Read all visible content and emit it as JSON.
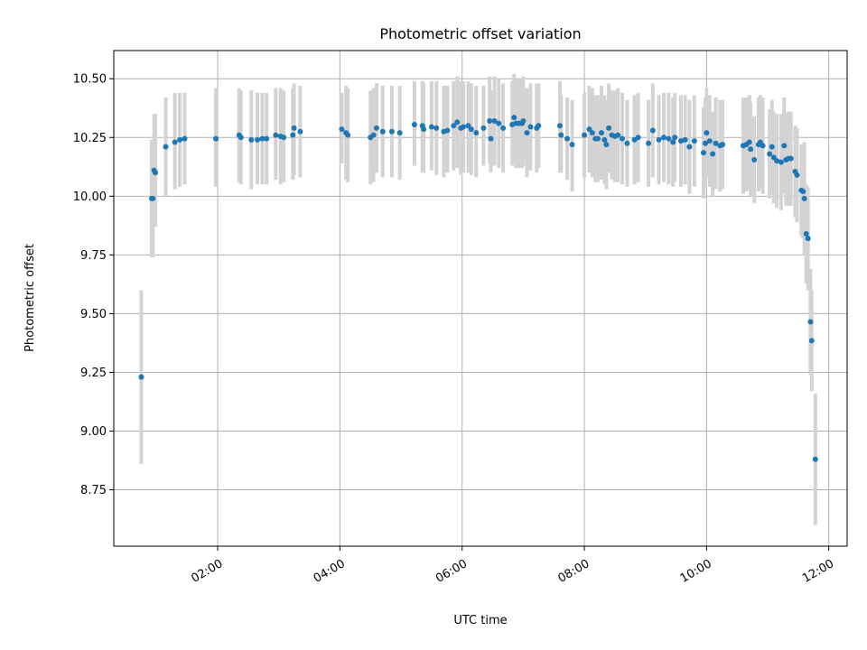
{
  "chart_data": {
    "type": "scatter",
    "title": "Photometric offset variation",
    "xlabel": "UTC time",
    "ylabel": "Photometric offset",
    "xlim_hours": [
      0.3,
      12.3
    ],
    "ylim": [
      8.51,
      10.62
    ],
    "x_ticks": [
      {
        "value": 2,
        "label": "02:00"
      },
      {
        "value": 4,
        "label": "04:00"
      },
      {
        "value": 6,
        "label": "06:00"
      },
      {
        "value": 8,
        "label": "08:00"
      },
      {
        "value": 10,
        "label": "10:00"
      },
      {
        "value": 12,
        "label": "12:00"
      }
    ],
    "y_ticks": [
      {
        "value": 8.75,
        "label": "8.75"
      },
      {
        "value": 9.0,
        "label": "9.00"
      },
      {
        "value": 9.25,
        "label": "9.25"
      },
      {
        "value": 9.5,
        "label": "9.50"
      },
      {
        "value": 9.75,
        "label": "9.75"
      },
      {
        "value": 10.0,
        "label": "10.00"
      },
      {
        "value": 10.25,
        "label": "10.25"
      },
      {
        "value": 10.5,
        "label": "10.50"
      }
    ],
    "grid": true,
    "series": [
      {
        "name": "offset",
        "marker_color": "#1f77b4",
        "error_color": "#d3d3d3",
        "x_hours": [
          0.75,
          0.92,
          0.94,
          0.96,
          0.98,
          1.15,
          1.3,
          1.38,
          1.46,
          1.97,
          2.35,
          2.38,
          2.55,
          2.65,
          2.73,
          2.8,
          2.95,
          3.03,
          3.08,
          3.23,
          3.25,
          3.35,
          4.03,
          4.1,
          4.13,
          4.5,
          4.55,
          4.6,
          4.7,
          4.85,
          4.98,
          5.22,
          5.35,
          5.37,
          5.5,
          5.58,
          5.7,
          5.76,
          5.86,
          5.92,
          5.98,
          6.02,
          6.1,
          6.15,
          6.23,
          6.35,
          6.45,
          6.47,
          6.53,
          6.6,
          6.67,
          6.82,
          6.85,
          6.88,
          6.93,
          6.98,
          7.0,
          7.06,
          7.12,
          7.22,
          7.25,
          7.6,
          7.62,
          7.72,
          7.8,
          8.0,
          8.08,
          8.13,
          8.18,
          8.22,
          8.28,
          8.33,
          8.36,
          8.4,
          8.45,
          8.5,
          8.55,
          8.62,
          8.7,
          8.82,
          8.88,
          9.05,
          9.12,
          9.22,
          9.3,
          9.38,
          9.45,
          9.48,
          9.58,
          9.65,
          9.72,
          9.8,
          9.95,
          9.98,
          10.0,
          10.05,
          10.1,
          10.15,
          10.22,
          10.26,
          10.6,
          10.65,
          10.7,
          10.72,
          10.78,
          10.85,
          10.88,
          10.92,
          11.03,
          11.07,
          11.1,
          11.15,
          11.22,
          11.27,
          11.3,
          11.34,
          11.38,
          11.45,
          11.48,
          11.55,
          11.58,
          11.6,
          11.63,
          11.66,
          11.7,
          11.72,
          11.78
        ],
        "y": [
          9.23,
          9.99,
          9.99,
          10.11,
          10.1,
          10.21,
          10.23,
          10.24,
          10.245,
          10.245,
          10.26,
          10.25,
          10.24,
          10.24,
          10.245,
          10.245,
          10.26,
          10.255,
          10.25,
          10.26,
          10.29,
          10.275,
          10.285,
          10.27,
          10.26,
          10.25,
          10.26,
          10.29,
          10.275,
          10.275,
          10.27,
          10.305,
          10.3,
          10.285,
          10.295,
          10.29,
          10.275,
          10.28,
          10.3,
          10.315,
          10.29,
          10.295,
          10.3,
          10.285,
          10.27,
          10.29,
          10.32,
          10.245,
          10.32,
          10.31,
          10.29,
          10.305,
          10.335,
          10.31,
          10.31,
          10.31,
          10.32,
          10.27,
          10.295,
          10.29,
          10.3,
          10.3,
          10.26,
          10.245,
          10.22,
          10.26,
          10.285,
          10.27,
          10.245,
          10.245,
          10.27,
          10.24,
          10.22,
          10.29,
          10.26,
          10.255,
          10.26,
          10.245,
          10.225,
          10.24,
          10.25,
          10.225,
          10.28,
          10.24,
          10.25,
          10.245,
          10.23,
          10.25,
          10.235,
          10.24,
          10.21,
          10.235,
          10.185,
          10.225,
          10.27,
          10.235,
          10.18,
          10.225,
          10.215,
          10.22,
          10.215,
          10.22,
          10.23,
          10.2,
          10.155,
          10.22,
          10.23,
          10.215,
          10.18,
          10.21,
          10.165,
          10.15,
          10.145,
          10.215,
          10.155,
          10.16,
          10.16,
          10.105,
          10.09,
          10.025,
          10.02,
          9.99,
          9.84,
          9.82,
          9.465,
          9.385,
          8.88
        ],
        "err_low": [
          8.86,
          9.74,
          9.74,
          9.87,
          9.87,
          10.0,
          10.03,
          10.04,
          10.05,
          10.04,
          10.06,
          10.05,
          10.03,
          10.05,
          10.05,
          10.05,
          10.07,
          10.05,
          10.06,
          10.07,
          10.09,
          10.08,
          10.14,
          10.07,
          10.06,
          10.05,
          10.06,
          10.1,
          10.08,
          10.08,
          10.07,
          10.13,
          10.1,
          10.1,
          10.11,
          10.09,
          10.08,
          10.1,
          10.11,
          10.12,
          10.09,
          10.1,
          10.1,
          10.09,
          10.08,
          10.13,
          10.14,
          10.1,
          10.13,
          10.12,
          10.1,
          10.13,
          10.14,
          10.12,
          10.12,
          10.12,
          10.13,
          10.08,
          10.11,
          10.1,
          10.12,
          10.1,
          10.1,
          10.07,
          10.02,
          10.08,
          10.1,
          10.08,
          10.06,
          10.06,
          10.07,
          10.05,
          10.03,
          10.1,
          10.07,
          10.06,
          10.06,
          10.05,
          10.04,
          10.05,
          10.06,
          10.04,
          10.08,
          10.05,
          10.06,
          10.05,
          10.04,
          10.06,
          10.04,
          10.05,
          10.01,
          10.04,
          9.99,
          10.03,
          10.08,
          10.04,
          10.0,
          10.03,
          10.02,
          10.03,
          10.01,
          10.02,
          10.03,
          10.0,
          9.97,
          10.02,
          10.03,
          10.01,
          9.99,
          10.01,
          9.97,
          9.95,
          9.94,
          10.01,
          9.96,
          9.96,
          9.96,
          9.91,
          9.89,
          9.83,
          9.82,
          9.75,
          9.63,
          9.6,
          9.24,
          9.17,
          8.6
        ],
        "err_high": [
          9.6,
          10.24,
          10.24,
          10.35,
          10.35,
          10.42,
          10.44,
          10.44,
          10.44,
          10.46,
          10.46,
          10.45,
          10.45,
          10.44,
          10.44,
          10.44,
          10.46,
          10.46,
          10.45,
          10.46,
          10.48,
          10.47,
          10.44,
          10.47,
          10.46,
          10.45,
          10.46,
          10.48,
          10.47,
          10.47,
          10.47,
          10.49,
          10.49,
          10.48,
          10.49,
          10.49,
          10.47,
          10.47,
          10.49,
          10.51,
          10.49,
          10.49,
          10.49,
          10.48,
          10.47,
          10.47,
          10.51,
          10.45,
          10.51,
          10.5,
          10.48,
          10.49,
          10.52,
          10.5,
          10.5,
          10.5,
          10.51,
          10.46,
          10.48,
          10.48,
          10.48,
          10.49,
          10.43,
          10.42,
          10.41,
          10.44,
          10.47,
          10.46,
          10.43,
          10.43,
          10.47,
          10.43,
          10.41,
          10.48,
          10.45,
          10.45,
          10.46,
          10.44,
          10.41,
          10.43,
          10.44,
          10.41,
          10.48,
          10.43,
          10.44,
          10.44,
          10.42,
          10.44,
          10.43,
          10.43,
          10.41,
          10.43,
          10.38,
          10.42,
          10.46,
          10.43,
          10.36,
          10.42,
          10.41,
          10.41,
          10.42,
          10.42,
          10.43,
          10.4,
          10.34,
          10.42,
          10.43,
          10.42,
          10.37,
          10.41,
          10.36,
          10.35,
          10.35,
          10.42,
          10.35,
          10.36,
          10.36,
          10.3,
          10.29,
          10.22,
          10.22,
          10.23,
          10.05,
          10.04,
          9.69,
          9.6,
          9.16
        ]
      }
    ]
  }
}
